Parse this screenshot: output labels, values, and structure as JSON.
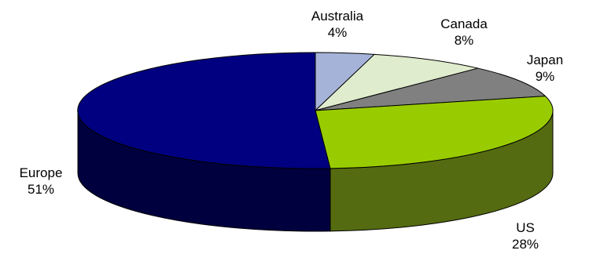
{
  "chart_data": {
    "type": "pie",
    "style": "3d",
    "title": "",
    "slices": [
      {
        "label": "Australia",
        "value": 4,
        "value_label": "4%",
        "color": "#a6b3d9",
        "side_color": "#6f7ea8"
      },
      {
        "label": "Canada",
        "value": 8,
        "value_label": "8%",
        "color": "#dfeccd",
        "side_color": "#a9b598"
      },
      {
        "label": "Japan",
        "value": 9,
        "value_label": "9%",
        "color": "#808080",
        "side_color": "#4f4f4f"
      },
      {
        "label": "US",
        "value": 28,
        "value_label": "28%",
        "color": "#99cc00",
        "side_color": "#556b11"
      },
      {
        "label": "Europe",
        "value": 51,
        "value_label": "51%",
        "color": "#000080",
        "side_color": "#00003e"
      }
    ],
    "legend": "none"
  }
}
